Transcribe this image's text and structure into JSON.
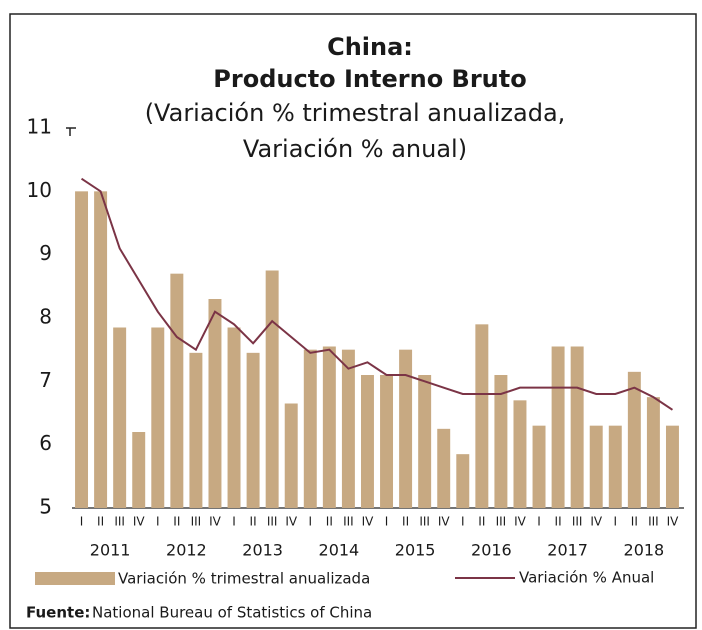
{
  "chart_data": {
    "type": "bar",
    "title": "China:",
    "subtitle": "Producto Interno Bruto",
    "subtitle_lines": [
      "(Variación % trimestral anualizada,",
      "Variación % anual)"
    ],
    "categories": [
      "I",
      "II",
      "III",
      "IV",
      "I",
      "II",
      "III",
      "IV",
      "I",
      "II",
      "III",
      "IV",
      "I",
      "II",
      "III",
      "IV",
      "I",
      "II",
      "III",
      "IV",
      "I",
      "II",
      "III",
      "IV",
      "I",
      "II",
      "III",
      "IV",
      "I",
      "II",
      "III",
      "IV"
    ],
    "year_labels": [
      "2011",
      "2012",
      "2013",
      "2014",
      "2015",
      "2016",
      "2017",
      "2018"
    ],
    "series": [
      {
        "name": "Variación % trimestral anualizada",
        "type": "bar",
        "color": "#c7a982",
        "values": [
          10.0,
          10.0,
          7.85,
          6.2,
          7.85,
          8.7,
          7.45,
          8.3,
          7.85,
          7.45,
          8.75,
          6.65,
          7.5,
          7.55,
          7.5,
          7.1,
          7.1,
          7.5,
          7.1,
          6.25,
          5.85,
          7.9,
          7.1,
          6.7,
          6.3,
          7.55,
          7.55,
          6.3,
          6.3,
          7.15,
          6.75,
          6.3
        ]
      },
      {
        "name": "Variación % Anual",
        "type": "line",
        "color": "#7b3446",
        "values": [
          10.2,
          10.0,
          9.1,
          8.6,
          8.1,
          7.7,
          7.5,
          8.1,
          7.9,
          7.6,
          7.95,
          7.7,
          7.45,
          7.5,
          7.2,
          7.3,
          7.1,
          7.1,
          7.0,
          6.9,
          6.8,
          6.8,
          6.8,
          6.9,
          6.9,
          6.9,
          6.9,
          6.8,
          6.8,
          6.9,
          6.75,
          6.55
        ]
      }
    ],
    "ylim": [
      5,
      11
    ],
    "yticks": [
      5,
      6,
      7,
      8,
      9,
      10,
      11
    ],
    "source_label": "Fuente:",
    "source_text": "National Bureau of Statistics of China"
  }
}
